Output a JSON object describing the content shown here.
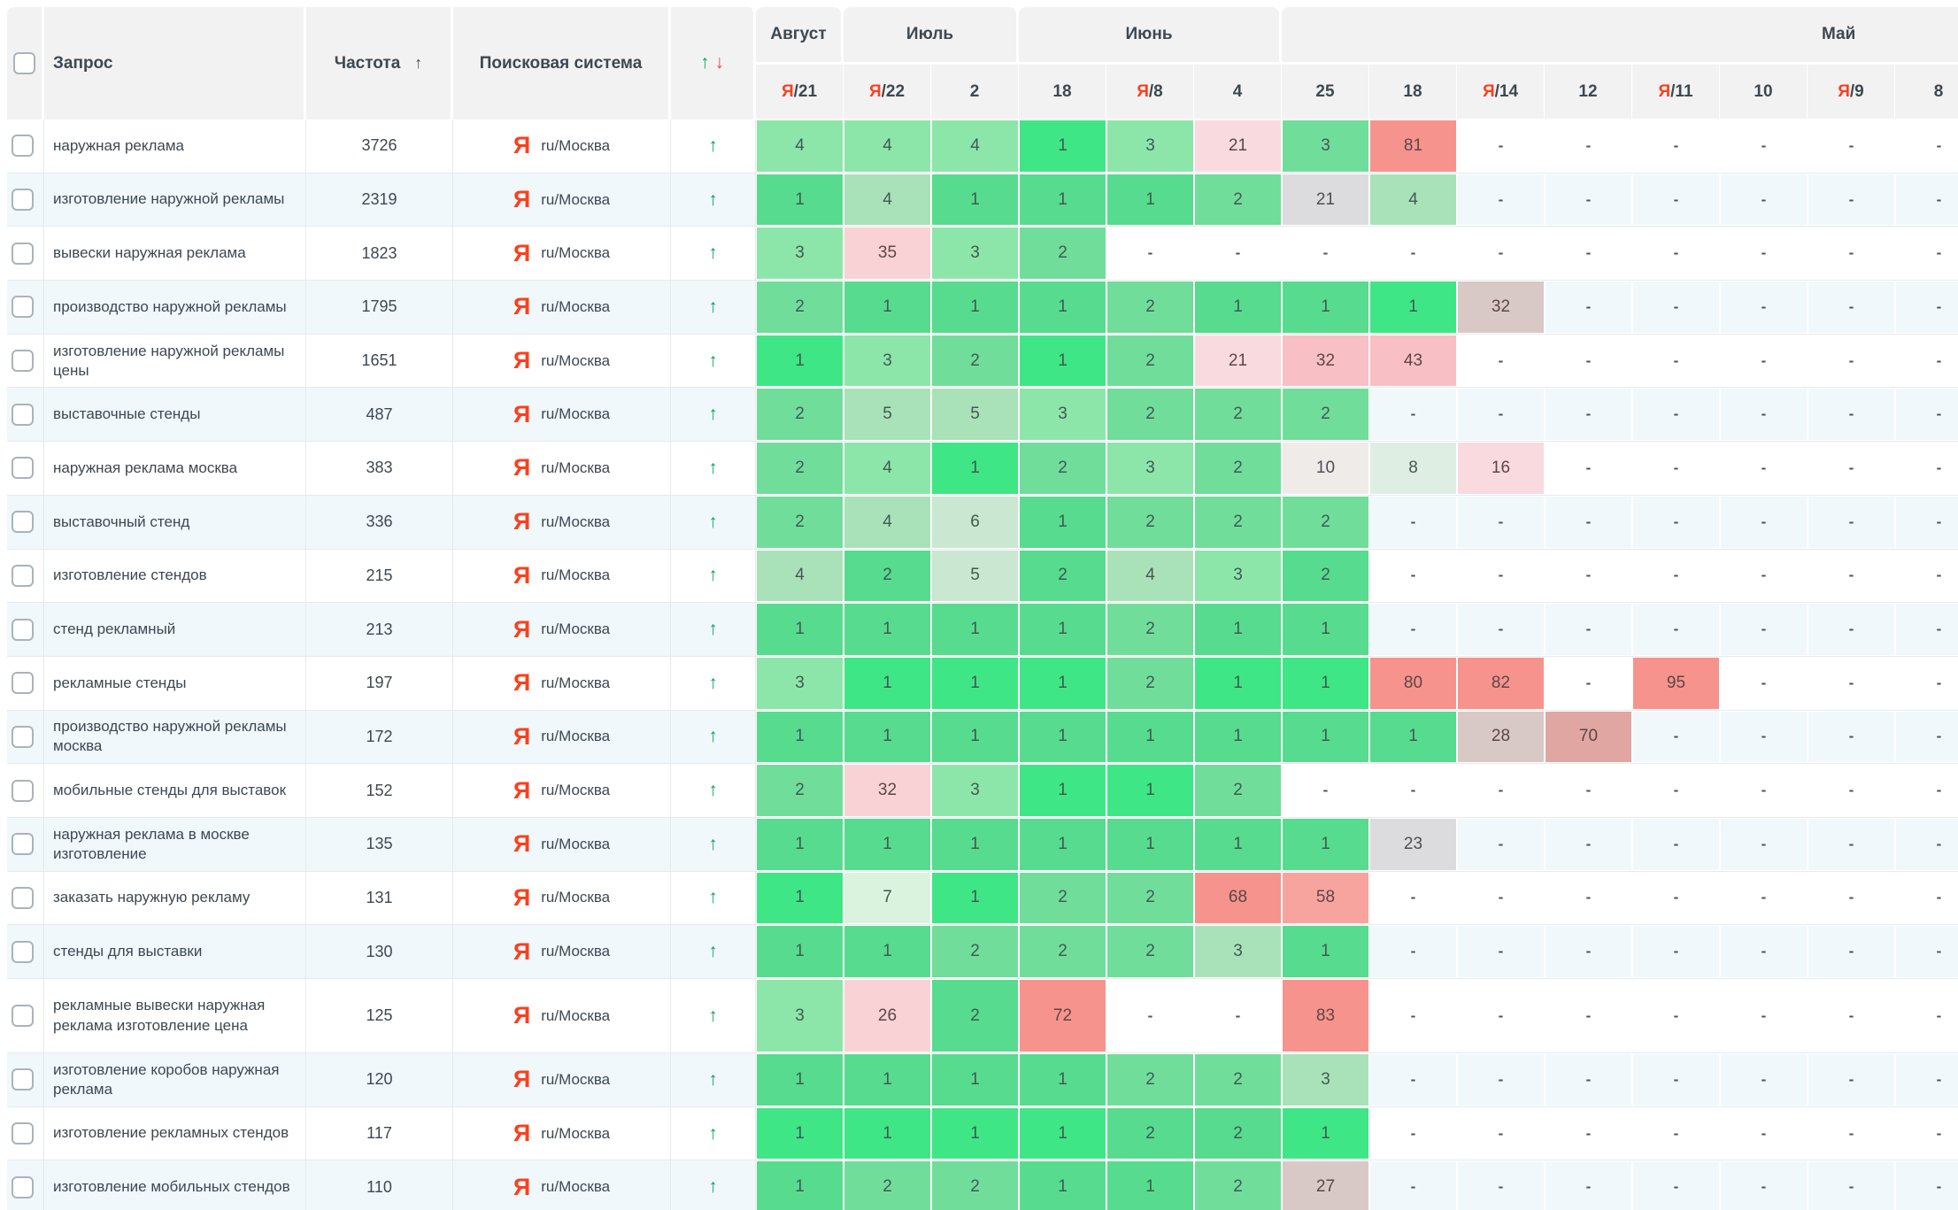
{
  "header": {
    "query_label": "Запрос",
    "frequency_label": "Частота",
    "frequency_sort_icon": "↑",
    "search_engine_label": "Поисковая система",
    "updown_icons": {
      "up": "↑",
      "down": "↓"
    },
    "months": [
      {
        "label": "Август",
        "span": 1
      },
      {
        "label": "Июль",
        "span": 2
      },
      {
        "label": "Июнь",
        "span": 3
      },
      {
        "label": "Май",
        "span": 8
      }
    ],
    "dates": [
      {
        "yandex": true,
        "day": "21"
      },
      {
        "yandex": true,
        "day": "22"
      },
      {
        "yandex": false,
        "day": "2"
      },
      {
        "yandex": false,
        "day": "18"
      },
      {
        "yandex": true,
        "day": "8"
      },
      {
        "yandex": false,
        "day": "4"
      },
      {
        "yandex": false,
        "day": "25"
      },
      {
        "yandex": false,
        "day": "18"
      },
      {
        "yandex": true,
        "day": "14"
      },
      {
        "yandex": false,
        "day": "12"
      },
      {
        "yandex": true,
        "day": "11"
      },
      {
        "yandex": false,
        "day": "10"
      },
      {
        "yandex": true,
        "day": "9"
      },
      {
        "yandex": false,
        "day": "8"
      }
    ]
  },
  "search_engine_cell": {
    "icon": "Я",
    "label": "ru/Москва"
  },
  "row_up_icon": "↑",
  "dash": "-",
  "colors": {
    "header_bg": "#f2f2f2",
    "header_text": "#3d4852",
    "yandex_red": "#fc3f1d",
    "up_green": "#0aa65b",
    "down_red": "#f44336",
    "even_row_bg": "#f0f8fb",
    "row_border": "#e7e9eb",
    "palette": {
      "g0": "#3fe686",
      "g1": "#57db8e",
      "g2": "#71dd9b",
      "g3": "#8de6a9",
      "g4": "#a9e2b8",
      "g5": "#c9e7d1",
      "g6": "#d9f3df",
      "ge": "#dfeee3",
      "gy": "#dcdcde",
      "gy2": "#eeebe9",
      "gp": "#d9c9c6",
      "rg": "#dfa6a2",
      "r0": "#f7938d",
      "r1": "#f8a49e",
      "r2": "#f8c0c4",
      "r3": "#f8d2d5",
      "r4": "#f9dbdf"
    }
  },
  "rows": [
    {
      "query": "наружная реклама",
      "frequency": "3726",
      "cells": [
        [
          "4",
          "g3"
        ],
        [
          "4",
          "g3"
        ],
        [
          "4",
          "g3"
        ],
        [
          "1",
          "g0"
        ],
        [
          "3",
          "g3"
        ],
        [
          "21",
          "r4"
        ],
        [
          "3",
          "g2"
        ],
        [
          "81",
          "r0"
        ],
        [
          "-",
          ""
        ],
        [
          "-",
          ""
        ],
        [
          "-",
          ""
        ],
        [
          "-",
          ""
        ],
        [
          "-",
          ""
        ],
        [
          "-",
          ""
        ]
      ]
    },
    {
      "query": "изготовление наружной рекламы",
      "frequency": "2319",
      "cells": [
        [
          "1",
          "g1"
        ],
        [
          "4",
          "g4"
        ],
        [
          "1",
          "g1"
        ],
        [
          "1",
          "g1"
        ],
        [
          "1",
          "g1"
        ],
        [
          "2",
          "g2"
        ],
        [
          "21",
          "gy"
        ],
        [
          "4",
          "g4"
        ],
        [
          "-",
          ""
        ],
        [
          "-",
          ""
        ],
        [
          "-",
          ""
        ],
        [
          "-",
          ""
        ],
        [
          "-",
          ""
        ],
        [
          "-",
          ""
        ]
      ]
    },
    {
      "query": "вывески наружная реклама",
      "frequency": "1823",
      "cells": [
        [
          "3",
          "g3"
        ],
        [
          "35",
          "r3"
        ],
        [
          "3",
          "g3"
        ],
        [
          "2",
          "g2"
        ],
        [
          "-",
          ""
        ],
        [
          "-",
          ""
        ],
        [
          "-",
          ""
        ],
        [
          "-",
          ""
        ],
        [
          "-",
          ""
        ],
        [
          "-",
          ""
        ],
        [
          "-",
          ""
        ],
        [
          "-",
          ""
        ],
        [
          "-",
          ""
        ],
        [
          "-",
          ""
        ]
      ]
    },
    {
      "query": "производство наружной рекламы",
      "frequency": "1795",
      "cells": [
        [
          "2",
          "g2"
        ],
        [
          "1",
          "g1"
        ],
        [
          "1",
          "g1"
        ],
        [
          "1",
          "g1"
        ],
        [
          "2",
          "g2"
        ],
        [
          "1",
          "g1"
        ],
        [
          "1",
          "g1"
        ],
        [
          "1",
          "g0"
        ],
        [
          "32",
          "gp"
        ],
        [
          "-",
          ""
        ],
        [
          "-",
          ""
        ],
        [
          "-",
          ""
        ],
        [
          "-",
          ""
        ],
        [
          "-",
          ""
        ]
      ]
    },
    {
      "query": "изготовление наружной рекламы цены",
      "frequency": "1651",
      "cells": [
        [
          "1",
          "g0"
        ],
        [
          "3",
          "g3"
        ],
        [
          "2",
          "g2"
        ],
        [
          "1",
          "g0"
        ],
        [
          "2",
          "g2"
        ],
        [
          "21",
          "r4"
        ],
        [
          "32",
          "r2"
        ],
        [
          "43",
          "r2"
        ],
        [
          "-",
          ""
        ],
        [
          "-",
          ""
        ],
        [
          "-",
          ""
        ],
        [
          "-",
          ""
        ],
        [
          "-",
          ""
        ],
        [
          "-",
          ""
        ]
      ]
    },
    {
      "query": "выставочные стенды",
      "frequency": "487",
      "cells": [
        [
          "2",
          "g2"
        ],
        [
          "5",
          "g4"
        ],
        [
          "5",
          "g4"
        ],
        [
          "3",
          "g3"
        ],
        [
          "2",
          "g2"
        ],
        [
          "2",
          "g2"
        ],
        [
          "2",
          "g2"
        ],
        [
          "-",
          ""
        ],
        [
          "-",
          ""
        ],
        [
          "-",
          ""
        ],
        [
          "-",
          ""
        ],
        [
          "-",
          ""
        ],
        [
          "-",
          ""
        ],
        [
          "-",
          ""
        ]
      ]
    },
    {
      "query": "наружная реклама москва",
      "frequency": "383",
      "cells": [
        [
          "2",
          "g2"
        ],
        [
          "4",
          "g3"
        ],
        [
          "1",
          "g0"
        ],
        [
          "2",
          "g2"
        ],
        [
          "3",
          "g3"
        ],
        [
          "2",
          "g2"
        ],
        [
          "10",
          "gy2"
        ],
        [
          "8",
          "ge"
        ],
        [
          "16",
          "r4"
        ],
        [
          "-",
          ""
        ],
        [
          "-",
          ""
        ],
        [
          "-",
          ""
        ],
        [
          "-",
          ""
        ],
        [
          "-",
          ""
        ]
      ]
    },
    {
      "query": "выставочный стенд",
      "frequency": "336",
      "cells": [
        [
          "2",
          "g2"
        ],
        [
          "4",
          "g4"
        ],
        [
          "6",
          "g5"
        ],
        [
          "1",
          "g1"
        ],
        [
          "2",
          "g2"
        ],
        [
          "2",
          "g2"
        ],
        [
          "2",
          "g2"
        ],
        [
          "-",
          ""
        ],
        [
          "-",
          ""
        ],
        [
          "-",
          ""
        ],
        [
          "-",
          ""
        ],
        [
          "-",
          ""
        ],
        [
          "-",
          ""
        ],
        [
          "-",
          ""
        ]
      ]
    },
    {
      "query": "изготовление стендов",
      "frequency": "215",
      "cells": [
        [
          "4",
          "g4"
        ],
        [
          "2",
          "g1"
        ],
        [
          "5",
          "g5"
        ],
        [
          "2",
          "g1"
        ],
        [
          "4",
          "g4"
        ],
        [
          "3",
          "g3"
        ],
        [
          "2",
          "g1"
        ],
        [
          "-",
          ""
        ],
        [
          "-",
          ""
        ],
        [
          "-",
          ""
        ],
        [
          "-",
          ""
        ],
        [
          "-",
          ""
        ],
        [
          "-",
          ""
        ],
        [
          "-",
          ""
        ]
      ]
    },
    {
      "query": "стенд рекламный",
      "frequency": "213",
      "cells": [
        [
          "1",
          "g1"
        ],
        [
          "1",
          "g1"
        ],
        [
          "1",
          "g1"
        ],
        [
          "1",
          "g1"
        ],
        [
          "2",
          "g2"
        ],
        [
          "1",
          "g1"
        ],
        [
          "1",
          "g1"
        ],
        [
          "-",
          ""
        ],
        [
          "-",
          ""
        ],
        [
          "-",
          ""
        ],
        [
          "-",
          ""
        ],
        [
          "-",
          ""
        ],
        [
          "-",
          ""
        ],
        [
          "-",
          ""
        ]
      ]
    },
    {
      "query": "рекламные стенды",
      "frequency": "197",
      "cells": [
        [
          "3",
          "g3"
        ],
        [
          "1",
          "g0"
        ],
        [
          "1",
          "g0"
        ],
        [
          "1",
          "g0"
        ],
        [
          "2",
          "g2"
        ],
        [
          "1",
          "g0"
        ],
        [
          "1",
          "g0"
        ],
        [
          "80",
          "r0"
        ],
        [
          "82",
          "r0"
        ],
        [
          "-",
          ""
        ],
        [
          "95",
          "r0"
        ],
        [
          "-",
          ""
        ],
        [
          "-",
          ""
        ],
        [
          "-",
          ""
        ]
      ]
    },
    {
      "query": "производство наружной рекламы москва",
      "frequency": "172",
      "cells": [
        [
          "1",
          "g1"
        ],
        [
          "1",
          "g1"
        ],
        [
          "1",
          "g1"
        ],
        [
          "1",
          "g1"
        ],
        [
          "1",
          "g1"
        ],
        [
          "1",
          "g1"
        ],
        [
          "1",
          "g1"
        ],
        [
          "1",
          "g1"
        ],
        [
          "28",
          "gp"
        ],
        [
          "70",
          "rg"
        ],
        [
          "-",
          ""
        ],
        [
          "-",
          ""
        ],
        [
          "-",
          ""
        ],
        [
          "-",
          ""
        ]
      ]
    },
    {
      "query": "мобильные стенды для выставок",
      "frequency": "152",
      "cells": [
        [
          "2",
          "g2"
        ],
        [
          "32",
          "r3"
        ],
        [
          "3",
          "g3"
        ],
        [
          "1",
          "g0"
        ],
        [
          "1",
          "g0"
        ],
        [
          "2",
          "g2"
        ],
        [
          "-",
          ""
        ],
        [
          "-",
          ""
        ],
        [
          "-",
          ""
        ],
        [
          "-",
          ""
        ],
        [
          "-",
          ""
        ],
        [
          "-",
          ""
        ],
        [
          "-",
          ""
        ],
        [
          "-",
          ""
        ]
      ]
    },
    {
      "query": "наружная реклама в москве изготовление",
      "frequency": "135",
      "cells": [
        [
          "1",
          "g1"
        ],
        [
          "1",
          "g1"
        ],
        [
          "1",
          "g1"
        ],
        [
          "1",
          "g1"
        ],
        [
          "1",
          "g1"
        ],
        [
          "1",
          "g1"
        ],
        [
          "1",
          "g1"
        ],
        [
          "23",
          "gy"
        ],
        [
          "-",
          ""
        ],
        [
          "-",
          ""
        ],
        [
          "-",
          ""
        ],
        [
          "-",
          ""
        ],
        [
          "-",
          ""
        ],
        [
          "-",
          ""
        ]
      ]
    },
    {
      "query": "заказать наружную рекламу",
      "frequency": "131",
      "cells": [
        [
          "1",
          "g0"
        ],
        [
          "7",
          "g6"
        ],
        [
          "1",
          "g0"
        ],
        [
          "2",
          "g2"
        ],
        [
          "2",
          "g2"
        ],
        [
          "68",
          "r0"
        ],
        [
          "58",
          "r1"
        ],
        [
          "-",
          ""
        ],
        [
          "-",
          ""
        ],
        [
          "-",
          ""
        ],
        [
          "-",
          ""
        ],
        [
          "-",
          ""
        ],
        [
          "-",
          ""
        ],
        [
          "-",
          ""
        ]
      ]
    },
    {
      "query": "стенды для выставки",
      "frequency": "130",
      "cells": [
        [
          "1",
          "g1"
        ],
        [
          "1",
          "g1"
        ],
        [
          "2",
          "g2"
        ],
        [
          "2",
          "g2"
        ],
        [
          "2",
          "g2"
        ],
        [
          "3",
          "g4"
        ],
        [
          "1",
          "g1"
        ],
        [
          "-",
          ""
        ],
        [
          "-",
          ""
        ],
        [
          "-",
          ""
        ],
        [
          "-",
          ""
        ],
        [
          "-",
          ""
        ],
        [
          "-",
          ""
        ],
        [
          "-",
          ""
        ]
      ]
    },
    {
      "query": "рекламные вывески наружная реклама изготовление цена",
      "frequency": "125",
      "tall": true,
      "cells": [
        [
          "3",
          "g3"
        ],
        [
          "26",
          "r3"
        ],
        [
          "2",
          "g1"
        ],
        [
          "72",
          "r0"
        ],
        [
          "-",
          ""
        ],
        [
          "-",
          ""
        ],
        [
          "83",
          "r0"
        ],
        [
          "-",
          ""
        ],
        [
          "-",
          ""
        ],
        [
          "-",
          ""
        ],
        [
          "-",
          ""
        ],
        [
          "-",
          ""
        ],
        [
          "-",
          ""
        ],
        [
          "-",
          ""
        ]
      ]
    },
    {
      "query": "изготовление коробов наружная реклама",
      "frequency": "120",
      "cells": [
        [
          "1",
          "g1"
        ],
        [
          "1",
          "g1"
        ],
        [
          "1",
          "g1"
        ],
        [
          "1",
          "g1"
        ],
        [
          "2",
          "g2"
        ],
        [
          "2",
          "g2"
        ],
        [
          "3",
          "g4"
        ],
        [
          "-",
          ""
        ],
        [
          "-",
          ""
        ],
        [
          "-",
          ""
        ],
        [
          "-",
          ""
        ],
        [
          "-",
          ""
        ],
        [
          "-",
          ""
        ],
        [
          "-",
          ""
        ]
      ]
    },
    {
      "query": "изготовление рекламных стендов",
      "frequency": "117",
      "cells": [
        [
          "1",
          "g0"
        ],
        [
          "1",
          "g0"
        ],
        [
          "1",
          "g0"
        ],
        [
          "1",
          "g0"
        ],
        [
          "2",
          "g1"
        ],
        [
          "2",
          "g1"
        ],
        [
          "1",
          "g0"
        ],
        [
          "-",
          ""
        ],
        [
          "-",
          ""
        ],
        [
          "-",
          ""
        ],
        [
          "-",
          ""
        ],
        [
          "-",
          ""
        ],
        [
          "-",
          ""
        ],
        [
          "-",
          ""
        ]
      ]
    },
    {
      "query": "изготовление мобильных стендов",
      "frequency": "110",
      "cells": [
        [
          "1",
          "g1"
        ],
        [
          "2",
          "g2"
        ],
        [
          "2",
          "g2"
        ],
        [
          "1",
          "g1"
        ],
        [
          "1",
          "g1"
        ],
        [
          "2",
          "g2"
        ],
        [
          "27",
          "gp"
        ],
        [
          "-",
          ""
        ],
        [
          "-",
          ""
        ],
        [
          "-",
          ""
        ],
        [
          "-",
          ""
        ],
        [
          "-",
          ""
        ],
        [
          "-",
          ""
        ],
        [
          "-",
          ""
        ]
      ]
    }
  ]
}
